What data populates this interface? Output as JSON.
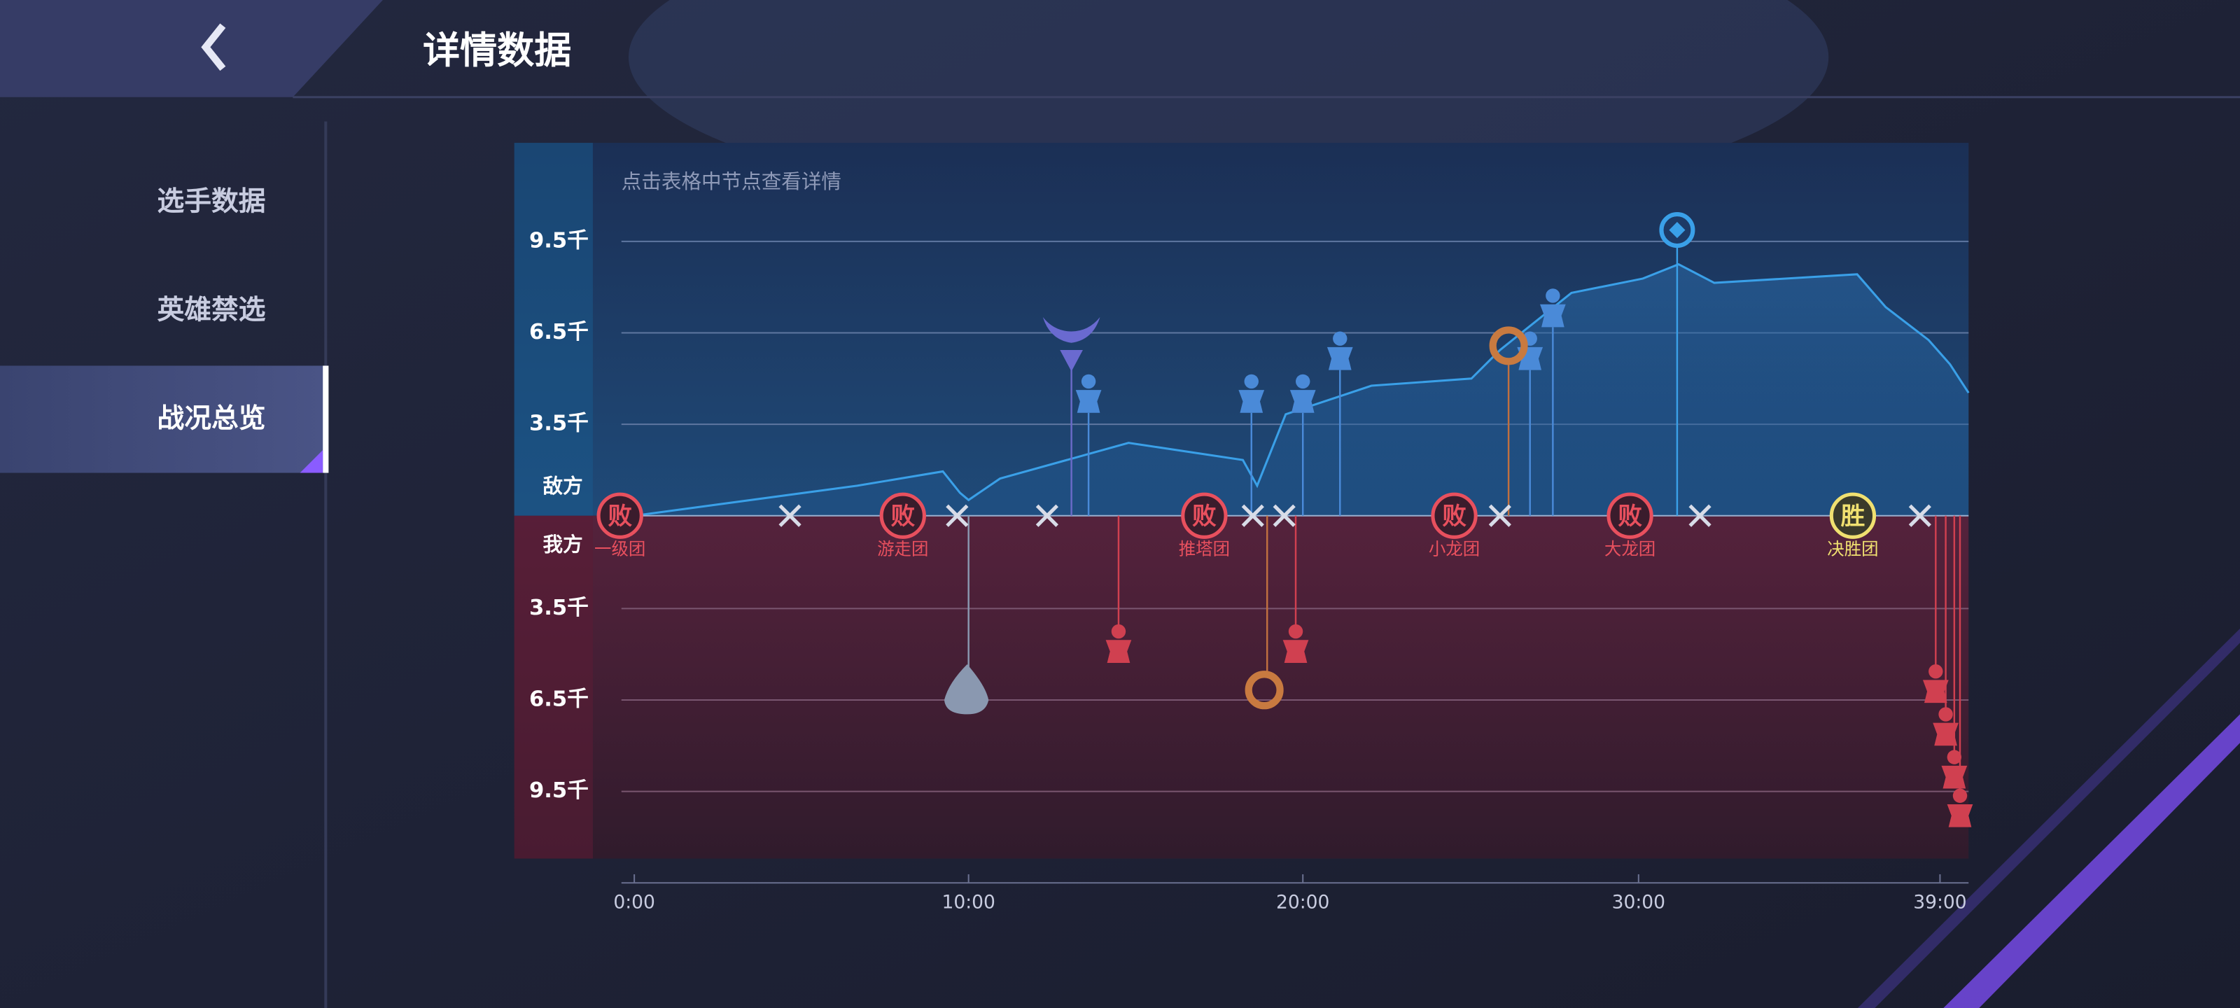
{
  "header": {
    "title": "详情数据"
  },
  "sidebar": {
    "tabs": [
      "选手数据",
      "英雄禁选",
      "战况总览"
    ]
  },
  "panel": {
    "hint": "点击表格中节点查看详情",
    "enemy_label": "敌方",
    "ally_label": "我方",
    "enemy_ticks": [
      "9.5千",
      "6.5千",
      "3.5千"
    ],
    "ally_ticks": [
      "3.5千",
      "6.5千",
      "9.5千"
    ],
    "time_ticks": [
      "0:00",
      "10:00",
      "20:00",
      "30:00",
      "39:00"
    ],
    "events": [
      {
        "result": "败",
        "name": "一级团"
      },
      {
        "result": "败",
        "name": "游走团"
      },
      {
        "result": "败",
        "name": "推塔团"
      },
      {
        "result": "败",
        "name": "小龙团"
      },
      {
        "result": "败",
        "name": "大龙团"
      },
      {
        "result": "胜",
        "name": "决胜团"
      }
    ]
  }
}
